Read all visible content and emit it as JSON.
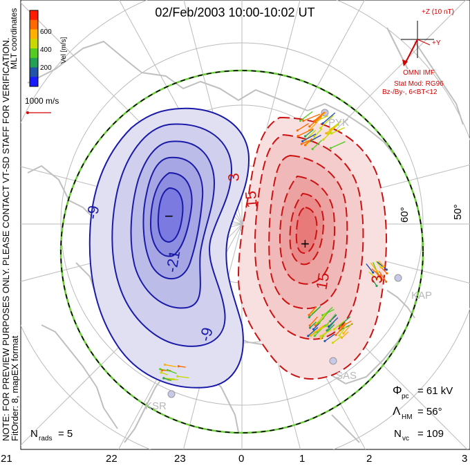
{
  "title": "02/Feb/2003 10:00-10:02 UT",
  "side_note": "NOTE: FOR PREVIEW PURPOSES ONLY. PLEASE CONTACT VT-SD STAFF FOR VERIFICATION.",
  "fit_order": "FitOrder: 8, mapEX format",
  "coord_system": "MLT coordinates",
  "velocity_scale": {
    "label": "Vel [m/s]",
    "ticks": [
      "600",
      "400",
      "200"
    ],
    "colors": [
      "#ff1a00",
      "#ff6a00",
      "#ffb000",
      "#c8d800",
      "#55cc22",
      "#22a055",
      "#2255aa",
      "#1a1aff"
    ]
  },
  "reference_vector": "1000 m/s",
  "imf": {
    "z_label": "+Z (10 nT)",
    "y_label": "+Y",
    "source": "OMNI IMF",
    "model": "Stat Mod: RG96",
    "condition": "Bz-/By-, 6<BT<12",
    "color": "#d40000"
  },
  "latitude_labels": [
    "60°",
    "50°"
  ],
  "mlt_labels": [
    "21",
    "22",
    "23",
    "0",
    "1",
    "2",
    "3"
  ],
  "radar_labels": [
    "PYK",
    "KAP",
    "SAS",
    "KSR"
  ],
  "contour_labels": {
    "neg": [
      "-9",
      "-21",
      "-9"
    ],
    "pos": [
      "3",
      "15",
      "15",
      "3"
    ],
    "min_marker": "−",
    "max_marker": "+"
  },
  "stats": {
    "phi_pc": {
      "symbol": "Φ",
      "sub": "pc",
      "value": "= 61 kV"
    },
    "lambda_hm": {
      "symbol": "Λ",
      "sub": "HM",
      "value": "= 56°"
    },
    "n_vc": {
      "symbol": "N",
      "sub": "vc",
      "value": "= 109"
    },
    "n_rads": {
      "symbol": "N",
      "sub": "rads",
      "value": "= 5"
    }
  },
  "colors": {
    "negative_cell": "#1a1aa8",
    "positive_cell": "#cc1111",
    "grid": "#bbbbbb",
    "coast": "#bfbfbf",
    "boundary": "#66cc33"
  }
}
